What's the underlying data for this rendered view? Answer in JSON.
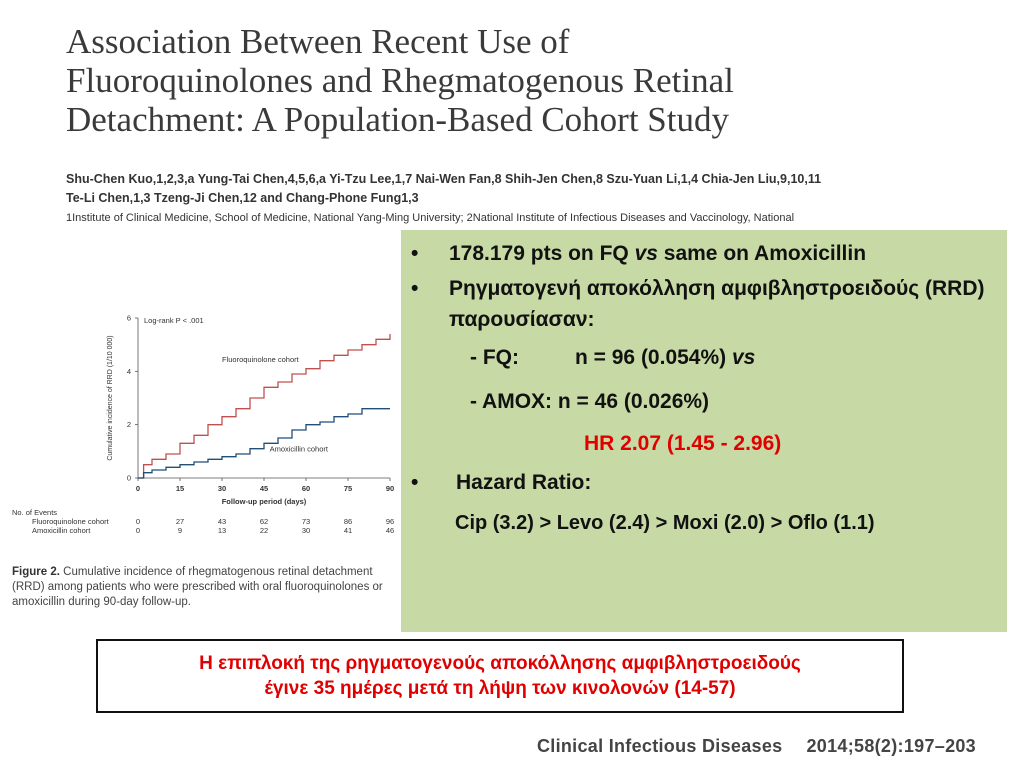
{
  "paper": {
    "title_lines": [
      "Association Between Recent Use of",
      "Fluoroquinolones and Rhegmatogenous Retinal",
      "Detachment: A Population-Based Cohort Study"
    ],
    "authors_line1": "Shu-Chen Kuo,1,2,3,a Yung-Tai Chen,4,5,6,a Yi-Tzu Lee,1,7 Nai-Wen Fan,8 Shih-Jen Chen,8 Szu-Yuan Li,1,4 Chia-Jen Liu,9,10,11",
    "authors_line2": "Te-Li Chen,1,3 Tzeng-Ji Chen,12 and Chang-Phone Fung1,3",
    "affiliation": "1Institute of Clinical Medicine, School of Medicine, National Yang-Ming University; 2National Institute of Infectious Diseases and Vaccinology, National"
  },
  "chart_data": {
    "type": "line",
    "ylabel": "Cumulative incidence of RRD (1/10 000)",
    "xlabel": "Follow-up period (days)",
    "annotation": "Log-rank P < .001",
    "xlim": [
      0,
      90
    ],
    "ylim": [
      0,
      6
    ],
    "x_ticks": [
      0,
      15,
      30,
      45,
      60,
      75,
      90
    ],
    "y_ticks": [
      0,
      2,
      4,
      6
    ],
    "series": [
      {
        "name": "Fluoroquinolone cohort",
        "color": "#c0504d",
        "x": [
          0,
          2,
          5,
          10,
          15,
          20,
          25,
          30,
          35,
          40,
          45,
          50,
          55,
          60,
          65,
          70,
          75,
          80,
          85,
          90
        ],
        "y": [
          0,
          0.5,
          0.7,
          0.9,
          1.3,
          1.6,
          2.0,
          2.3,
          2.6,
          3.0,
          3.4,
          3.6,
          3.9,
          4.1,
          4.4,
          4.6,
          4.8,
          5.0,
          5.2,
          5.4
        ]
      },
      {
        "name": "Amoxicillin cohort",
        "color": "#1f4e79",
        "x": [
          0,
          2,
          5,
          10,
          15,
          20,
          25,
          30,
          35,
          40,
          45,
          50,
          55,
          60,
          65,
          70,
          75,
          80,
          85,
          90
        ],
        "y": [
          0,
          0.2,
          0.3,
          0.4,
          0.5,
          0.6,
          0.7,
          0.8,
          0.9,
          1.1,
          1.3,
          1.5,
          1.8,
          2.0,
          2.1,
          2.3,
          2.4,
          2.6,
          2.6,
          2.6
        ]
      }
    ],
    "events": {
      "header": "No. of Events",
      "rows": [
        {
          "label": "Fluoroquinolone cohort",
          "values": [
            "0",
            "27",
            "43",
            "62",
            "73",
            "86",
            "96"
          ]
        },
        {
          "label": "Amoxicillin cohort",
          "values": [
            "0",
            "9",
            "13",
            "22",
            "30",
            "41",
            "46"
          ]
        }
      ]
    }
  },
  "figure_caption": {
    "label": "Figure 2.",
    "text": "Cumulative incidence of rhegmatogenous retinal detachment (RRD) among patients who were prescribed with oral fluoroquinolones or amoxicillin during 90-day follow-up."
  },
  "box": {
    "bullet": "•",
    "b1_pre": "178.179 pts on FQ ",
    "b1_em": "vs",
    "b1_post": " same on Amoxicillin",
    "b2": "Ρηγματογενή αποκόλληση αμφιβληστροειδούς (RRD) παρουσίασαν:",
    "fq_label": "- FQ:",
    "fq_value": "n = 96 (0.054%) ",
    "fq_vs": "vs",
    "amox": "- AMOX:  n = 46 (0.026%)",
    "hr": "HR 2.07 (1.45 - 2.96)",
    "b3": "Hazard Ratio:",
    "ranking": "Cip (3.2) > Levo (2.4) > Moxi (2.0) > Oflo (1.1)"
  },
  "bottom": {
    "line1": "Η επιπλοκή της ρηγματογενούς αποκόλλησης αμφιβληστροειδούς",
    "line2": "έγινε 35 ημέρες μετά τη λήψη των κινολονών (14-57)"
  },
  "citation": {
    "journal": "Clinical Infectious Diseases",
    "ref": "2014;58(2):197–203"
  }
}
